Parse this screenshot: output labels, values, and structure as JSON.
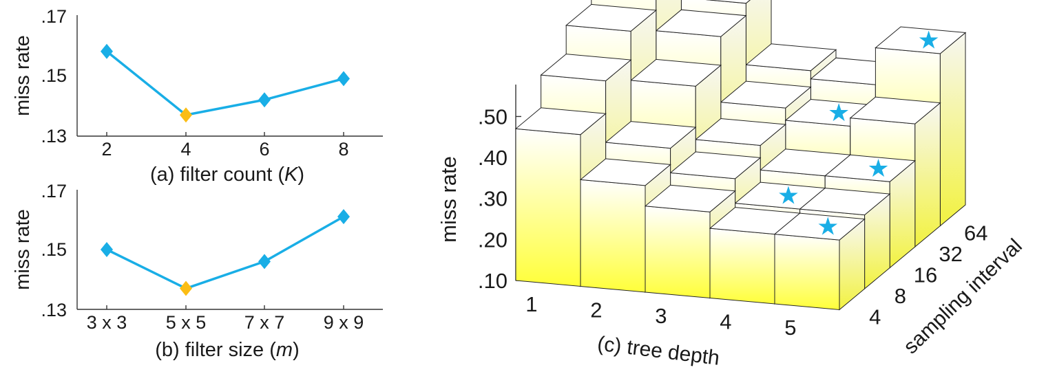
{
  "chart_data": [
    {
      "type": "line",
      "x": [
        "2",
        "4",
        "6",
        "8"
      ],
      "values": [
        0.158,
        0.137,
        0.142,
        0.149
      ],
      "highlight_index": 1,
      "ylabel": "miss rate",
      "caption": "(a) filter count (K)",
      "caption_pre": "(a) filter count (",
      "caption_var": "K",
      "caption_post": ")",
      "yticks": [
        ".13",
        ".15",
        ".17"
      ],
      "ylim": [
        0.13,
        0.17
      ],
      "colors": {
        "line": "#19aee6",
        "marker": "#19aee6",
        "best": "#fbbd14"
      }
    },
    {
      "type": "line",
      "x": [
        "3 x 3",
        "5 x 5",
        "7 x 7",
        "9 x 9"
      ],
      "values": [
        0.15,
        0.137,
        0.146,
        0.161
      ],
      "highlight_index": 1,
      "ylabel": "miss rate",
      "caption": "(b) filter size (m)",
      "caption_pre": "(b) filter size (",
      "caption_var": "m",
      "caption_post": ")",
      "yticks": [
        ".13",
        ".15",
        ".17"
      ],
      "ylim": [
        0.13,
        0.17
      ],
      "colors": {
        "line": "#19aee6",
        "marker": "#19aee6",
        "best": "#fbbd14"
      }
    },
    {
      "type": "bar3d",
      "zlabel": "miss rate",
      "zticks": [
        ".10",
        ".20",
        ".30",
        ".40",
        ".50"
      ],
      "zlim": [
        0.1,
        0.55
      ],
      "xlabel": "(c) tree depth",
      "x": [
        "1",
        "2",
        "3",
        "4",
        "5"
      ],
      "ylabel": "sampling interval",
      "y": [
        "4",
        "8",
        "16",
        "32",
        "64"
      ],
      "values": [
        [
          0.47,
          0.55,
          0.62,
          0.68,
          0.72
        ],
        [
          0.36,
          0.4,
          0.5,
          0.57,
          0.6
        ],
        [
          0.31,
          0.34,
          0.37,
          0.41,
          0.45
        ],
        [
          0.27,
          0.28,
          0.31,
          0.38,
          0.43
        ],
        [
          0.27,
          0.28,
          0.31,
          0.4,
          0.52
        ]
      ],
      "best_marker": "★",
      "best_cells": [
        [
          4,
          0
        ],
        [
          3,
          1
        ],
        [
          4,
          2
        ],
        [
          3,
          3
        ],
        [
          4,
          4
        ]
      ],
      "colors": {
        "top": "#ffffff",
        "fade": "#ffff33",
        "edge": "#222222",
        "star": "#19aee6"
      }
    }
  ]
}
